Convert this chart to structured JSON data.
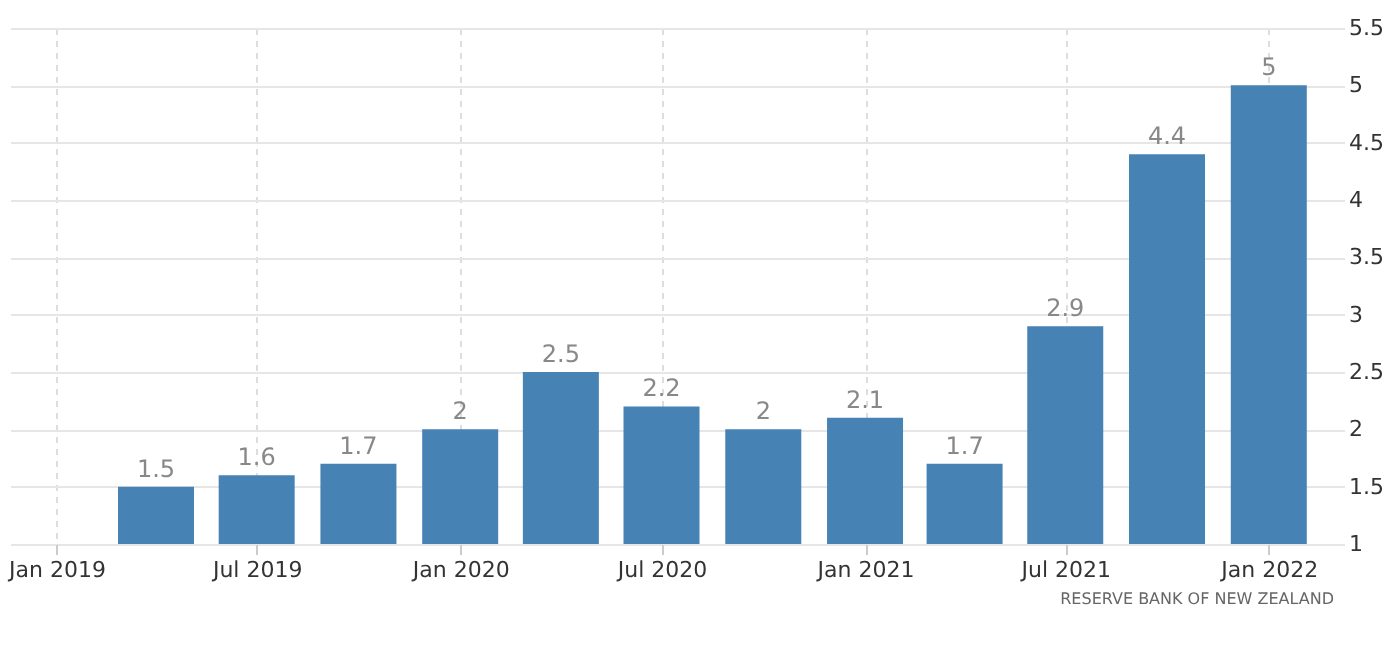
{
  "chart_data": {
    "type": "bar",
    "x": [
      "2019-04",
      "2019-07",
      "2019-10",
      "2020-01",
      "2020-04",
      "2020-07",
      "2020-10",
      "2021-01",
      "2021-04",
      "2021-07",
      "2021-10",
      "2022-01"
    ],
    "values": [
      1.5,
      1.6,
      1.7,
      2,
      2.5,
      2.2,
      2,
      2.1,
      1.7,
      2.9,
      4.4,
      5
    ],
    "color": "#4682b4",
    "data_labels": true,
    "xlim": [
      "2018-11-20",
      "2022-03-10"
    ],
    "xticks": [
      {
        "value": "2019-01",
        "label": "Jan 2019"
      },
      {
        "value": "2019-07",
        "label": "Jul 2019"
      },
      {
        "value": "2020-01",
        "label": "Jan 2020"
      },
      {
        "value": "2020-07",
        "label": "Jul 2020"
      },
      {
        "value": "2021-01",
        "label": "Jan 2021"
      },
      {
        "value": "2021-07",
        "label": "Jul 2021"
      },
      {
        "value": "2022-01",
        "label": "Jan 2022"
      }
    ],
    "ylim": [
      1,
      5.5
    ],
    "yticks": [
      1,
      1.5,
      2,
      2.5,
      3,
      3.5,
      4,
      4.5,
      5,
      5.5
    ],
    "grid": true,
    "annotations": [
      "RESERVE BANK OF NEW ZEALAND"
    ]
  }
}
